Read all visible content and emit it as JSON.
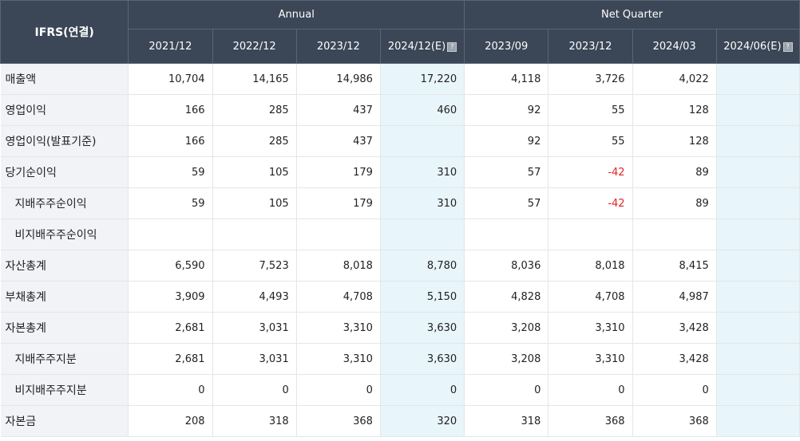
{
  "header": {
    "corner_label": "IFRS(연결)",
    "annual_label": "Annual",
    "quarter_label": "Net Quarter",
    "columns": [
      "2021/12",
      "2022/12",
      "2023/12",
      "2024/12(E)",
      "2023/09",
      "2023/12",
      "2024/03",
      "2024/06(E)"
    ],
    "estimate_icon": "info-icon"
  },
  "rows": [
    {
      "label": "매출액",
      "indent": false,
      "values": [
        "10,704",
        "14,165",
        "14,986",
        "17,220",
        "4,118",
        "3,726",
        "4,022",
        ""
      ]
    },
    {
      "label": "영업이익",
      "indent": false,
      "values": [
        "166",
        "285",
        "437",
        "460",
        "92",
        "55",
        "128",
        ""
      ]
    },
    {
      "label": "영업이익(발표기준)",
      "indent": false,
      "values": [
        "166",
        "285",
        "437",
        "",
        "92",
        "55",
        "128",
        ""
      ]
    },
    {
      "label": "당기순이익",
      "indent": false,
      "values": [
        "59",
        "105",
        "179",
        "310",
        "57",
        "-42",
        "89",
        ""
      ]
    },
    {
      "label": "지배주주순이익",
      "indent": true,
      "values": [
        "59",
        "105",
        "179",
        "310",
        "57",
        "-42",
        "89",
        ""
      ]
    },
    {
      "label": "비지배주주순이익",
      "indent": true,
      "values": [
        "",
        "",
        "",
        "",
        "",
        "",
        "",
        ""
      ]
    },
    {
      "label": "자산총계",
      "indent": false,
      "values": [
        "6,590",
        "7,523",
        "8,018",
        "8,780",
        "8,036",
        "8,018",
        "8,415",
        ""
      ]
    },
    {
      "label": "부채총계",
      "indent": false,
      "values": [
        "3,909",
        "4,493",
        "4,708",
        "5,150",
        "4,828",
        "4,708",
        "4,987",
        ""
      ]
    },
    {
      "label": "자본총계",
      "indent": false,
      "values": [
        "2,681",
        "3,031",
        "3,310",
        "3,630",
        "3,208",
        "3,310",
        "3,428",
        ""
      ]
    },
    {
      "label": "지배주주지분",
      "indent": true,
      "values": [
        "2,681",
        "3,031",
        "3,310",
        "3,630",
        "3,208",
        "3,310",
        "3,428",
        ""
      ]
    },
    {
      "label": "비지배주주지분",
      "indent": true,
      "values": [
        "0",
        "0",
        "0",
        "0",
        "0",
        "0",
        "0",
        ""
      ]
    },
    {
      "label": "자본금",
      "indent": false,
      "values": [
        "208",
        "318",
        "368",
        "320",
        "318",
        "368",
        "368",
        ""
      ]
    }
  ],
  "colors": {
    "header_bg": "#3b4656",
    "label_bg": "#f1f3f6",
    "estimate_bg": "#e8f5fa",
    "negative": "#e02424"
  }
}
